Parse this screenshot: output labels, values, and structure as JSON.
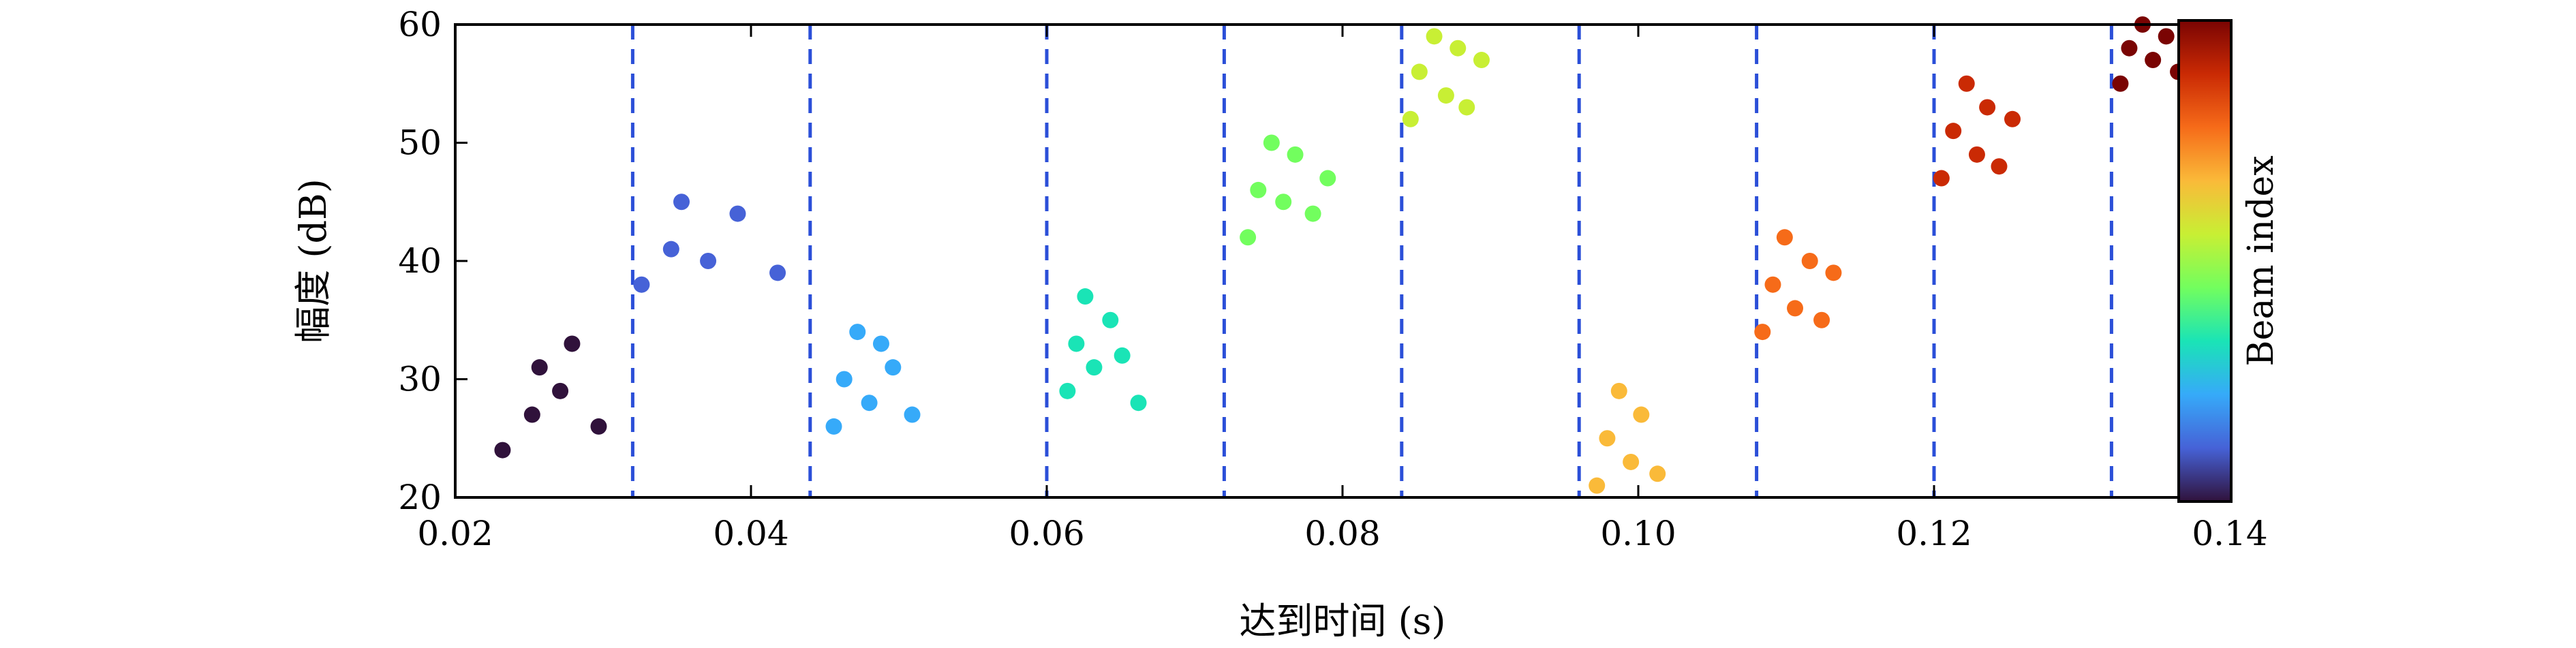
{
  "chart_data": {
    "type": "scatter",
    "xlabel": "达到时间 (s)",
    "ylabel": "幅度 (dB)",
    "xlim": [
      0.02,
      0.14
    ],
    "ylim": [
      20,
      60
    ],
    "xticks": [
      0.02,
      0.04,
      0.06,
      0.08,
      0.1,
      0.12,
      0.14
    ],
    "xtick_labels": [
      "0.02",
      "0.04",
      "0.06",
      "0.08",
      "0.10",
      "0.12",
      "0.14"
    ],
    "yticks": [
      20,
      30,
      40,
      50,
      60
    ],
    "ytick_labels": [
      "20",
      "30",
      "40",
      "50",
      "60"
    ],
    "vlines": [
      0.032,
      0.044,
      0.06,
      0.072,
      0.084,
      0.096,
      0.108,
      0.12,
      0.132
    ],
    "vline_color": "#2b4fd8",
    "colorbar": {
      "label": "Beam index",
      "colormap": "turbo",
      "stops": [
        "#30123b",
        "#4662d7",
        "#36aaf9",
        "#1ae4b6",
        "#72fe5e",
        "#c8ef34",
        "#faba39",
        "#f66b19",
        "#ca2a04",
        "#7a0403"
      ]
    },
    "grid": false,
    "series": [
      {
        "color": "#30123b",
        "x": [
          0.0232,
          0.0252,
          0.0257,
          0.0271,
          0.0279,
          0.0297
        ],
        "y": [
          24,
          27,
          31,
          29,
          33,
          26
        ]
      },
      {
        "color": "#4662d7",
        "x": [
          0.0326,
          0.0346,
          0.0353,
          0.0371,
          0.0391,
          0.0418
        ],
        "y": [
          38,
          41,
          45,
          40,
          44,
          39
        ]
      },
      {
        "color": "#36aaf9",
        "x": [
          0.0456,
          0.0463,
          0.0472,
          0.048,
          0.0488,
          0.0496,
          0.0509
        ],
        "y": [
          26,
          30,
          34,
          28,
          33,
          31,
          27
        ]
      },
      {
        "color": "#1ae4b6",
        "x": [
          0.0614,
          0.062,
          0.0626,
          0.0632,
          0.0643,
          0.0651,
          0.0662
        ],
        "y": [
          29,
          33,
          37,
          31,
          35,
          32,
          28
        ]
      },
      {
        "color": "#72fe5e",
        "x": [
          0.0736,
          0.0743,
          0.0752,
          0.076,
          0.0768,
          0.078,
          0.079
        ],
        "y": [
          42,
          46,
          50,
          45,
          49,
          44,
          47
        ]
      },
      {
        "color": "#c8ef34",
        "x": [
          0.0846,
          0.0852,
          0.0862,
          0.087,
          0.0878,
          0.0884,
          0.0894
        ],
        "y": [
          52,
          56,
          59,
          54,
          58,
          53,
          57
        ]
      },
      {
        "color": "#faba39",
        "x": [
          0.0972,
          0.0979,
          0.0987,
          0.0995,
          0.1002,
          0.1013
        ],
        "y": [
          21,
          25,
          29,
          23,
          27,
          22
        ]
      },
      {
        "color": "#f66b19",
        "x": [
          0.1084,
          0.1091,
          0.1099,
          0.1106,
          0.1116,
          0.1124,
          0.1132
        ],
        "y": [
          34,
          38,
          42,
          36,
          40,
          35,
          39
        ]
      },
      {
        "color": "#ca2a04",
        "x": [
          0.1205,
          0.1213,
          0.1222,
          0.1229,
          0.1236,
          0.1244,
          0.1253
        ],
        "y": [
          47,
          51,
          55,
          49,
          53,
          48,
          52
        ]
      },
      {
        "color": "#7a0403",
        "x": [
          0.1326,
          0.1332,
          0.1341,
          0.1348,
          0.1357,
          0.1365
        ],
        "y": [
          55,
          58,
          60,
          57,
          59,
          56
        ]
      }
    ]
  }
}
